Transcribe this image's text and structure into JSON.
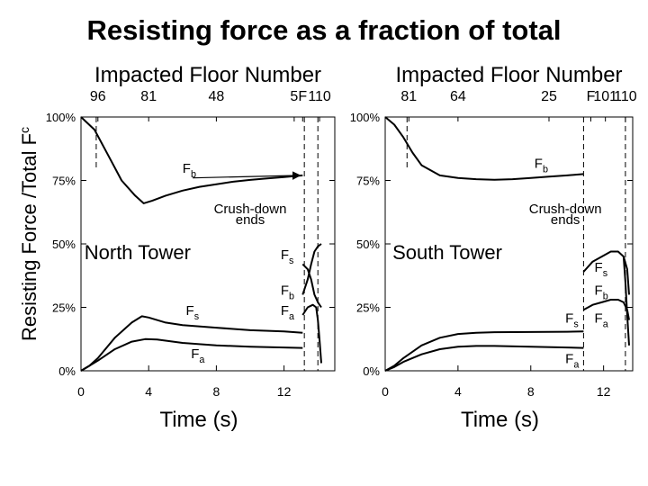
{
  "title": "Resisting force as a fraction of total",
  "ylabel_main": "Resisting Force /Total F",
  "ylabel_sub": "c",
  "chart_data": [
    {
      "type": "line",
      "panel_label": "North Tower",
      "top_axis_label": "Impacted Floor Number",
      "top_ticks": [
        {
          "label": "96",
          "t": 1.0
        },
        {
          "label": "81",
          "t": 4.0
        },
        {
          "label": "48",
          "t": 8.0
        },
        {
          "label": "5",
          "t": 12.6
        },
        {
          "label": "F",
          "t": 13.1
        },
        {
          "label": "110",
          "t": 14.1
        }
      ],
      "xlabel": "Time (s)",
      "xlim": [
        0,
        15
      ],
      "ylim": [
        0,
        100
      ],
      "x_ticks": [
        "0",
        "4",
        "8",
        "12"
      ],
      "x_tick_values": [
        0,
        4,
        8,
        12
      ],
      "y_ticks": [
        "0%",
        "25%",
        "50%",
        "75%",
        "100%"
      ],
      "y_tick_values": [
        0,
        25,
        50,
        75,
        100
      ],
      "dashed_x": [
        0.9,
        13.2,
        14.0
      ],
      "series": [
        {
          "name": "F",
          "sub": "b",
          "x": [
            0,
            0.8,
            1.6,
            2.4,
            3.2,
            3.7,
            4.2,
            5,
            6,
            7,
            8,
            9,
            10,
            11,
            12,
            13.1
          ],
          "y": [
            100,
            95,
            85,
            75,
            69,
            66,
            67,
            69,
            71,
            72.5,
            73.5,
            74.5,
            75.2,
            75.8,
            76.3,
            77
          ]
        },
        {
          "name": "F",
          "sub": "s",
          "x": [
            0,
            0.5,
            1,
            2,
            3,
            3.6,
            4,
            5,
            6,
            8,
            10,
            12,
            13.1
          ],
          "y": [
            0,
            2,
            5,
            13,
            19,
            21.5,
            21,
            19,
            18,
            17,
            16,
            15.5,
            15
          ]
        },
        {
          "name": "F",
          "sub": "a",
          "x": [
            0,
            0.5,
            1,
            2,
            3,
            3.8,
            4.5,
            6,
            8,
            10,
            12,
            13.1
          ],
          "y": [
            0,
            2,
            4,
            8.5,
            11.5,
            12.5,
            12.3,
            11,
            10,
            9.5,
            9.2,
            9
          ]
        },
        {
          "name": "F",
          "sub": "s",
          "x": [
            13.1,
            13.4,
            13.6,
            13.8,
            14,
            14.2
          ],
          "y": [
            42,
            40,
            36,
            30,
            27,
            25
          ]
        },
        {
          "name": "F",
          "sub": "b",
          "x": [
            13.1,
            13.4,
            13.6,
            13.8,
            14,
            14.2
          ],
          "y": [
            30,
            36,
            42,
            47,
            49,
            50
          ]
        },
        {
          "name": "F",
          "sub": "a",
          "x": [
            13.1,
            13.4,
            13.7,
            13.9,
            14,
            14.1,
            14.2
          ],
          "y": [
            22,
            25,
            26,
            25,
            20,
            12,
            3
          ]
        }
      ],
      "labels": [
        {
          "text": "F",
          "sub": "b",
          "x": 6.0,
          "y": 78
        },
        {
          "text": "F",
          "sub": "s",
          "x": 6.2,
          "y": 22
        },
        {
          "text": "F",
          "sub": "a",
          "x": 6.5,
          "y": 5
        },
        {
          "text": "F",
          "sub": "s",
          "x": 11.8,
          "y": 44
        },
        {
          "text": "F",
          "sub": "b",
          "x": 11.8,
          "y": 30
        },
        {
          "text": "F",
          "sub": "a",
          "x": 11.8,
          "y": 22
        }
      ],
      "annotation": {
        "line1": "Crush-down",
        "line2": "ends",
        "x": 10.0,
        "y": 62,
        "arrow_to_x": 13.1,
        "arrow_to_y": 77
      }
    },
    {
      "type": "line",
      "panel_label": "South Tower",
      "top_axis_label": "Impacted Floor Number",
      "top_ticks": [
        {
          "label": "81",
          "t": 1.3
        },
        {
          "label": "64",
          "t": 4.0
        },
        {
          "label": "25",
          "t": 9.0
        },
        {
          "label": "F",
          "t": 11.3
        },
        {
          "label": "101",
          "t": 12.1
        },
        {
          "label": "110",
          "t": 13.2
        }
      ],
      "xlabel": "Time (s)",
      "xlim": [
        0,
        13.6
      ],
      "ylim": [
        0,
        100
      ],
      "x_ticks": [
        "0",
        "4",
        "8",
        "12"
      ],
      "x_tick_values": [
        0,
        4,
        8,
        12
      ],
      "y_ticks": [
        "0%",
        "25%",
        "50%",
        "75%",
        "100%"
      ],
      "y_tick_values": [
        0,
        25,
        50,
        75,
        100
      ],
      "dashed_x": [
        1.2,
        10.9,
        13.2
      ],
      "series": [
        {
          "name": "F",
          "sub": "b",
          "x": [
            0,
            0.5,
            1,
            1.5,
            2,
            3,
            4,
            5,
            6,
            7,
            8,
            9,
            10,
            10.9
          ],
          "y": [
            100,
            97,
            92,
            86,
            81,
            77,
            76,
            75.5,
            75.3,
            75.5,
            76,
            76.5,
            77,
            77.5
          ]
        },
        {
          "name": "F",
          "sub": "s",
          "x": [
            0,
            0.5,
            1,
            2,
            3,
            4,
            5,
            6,
            8,
            10,
            10.9
          ],
          "y": [
            0,
            2,
            5,
            10,
            13,
            14.5,
            15,
            15.2,
            15.3,
            15.4,
            15.5
          ]
        },
        {
          "name": "F",
          "sub": "a",
          "x": [
            0,
            0.5,
            1,
            2,
            3,
            4,
            5,
            6,
            8,
            10,
            10.9
          ],
          "y": [
            0,
            1.5,
            3.5,
            6.5,
            8.5,
            9.5,
            9.8,
            9.8,
            9.5,
            9.2,
            9
          ]
        },
        {
          "name": "F",
          "sub": "s",
          "x": [
            10.9,
            11.4,
            11.9,
            12.4,
            12.8,
            13.1,
            13.3,
            13.4
          ],
          "y": [
            39,
            43,
            45,
            47,
            47,
            45,
            40,
            30
          ]
        },
        {
          "name": "F",
          "sub": "b",
          "x": [
            10.9,
            11.4,
            11.9,
            12.4,
            12.8,
            13.1,
            13.3,
            13.4
          ],
          "y": [
            24,
            26,
            27,
            28,
            28,
            27,
            24,
            20
          ]
        },
        {
          "name": "F",
          "sub": "a",
          "x": [
            13.1,
            13.2,
            13.3,
            13.4
          ],
          "y": [
            45,
            35,
            22,
            10
          ]
        }
      ],
      "labels": [
        {
          "text": "F",
          "sub": "b",
          "x": 8.2,
          "y": 80
        },
        {
          "text": "F",
          "sub": "s",
          "x": 9.9,
          "y": 19
        },
        {
          "text": "F",
          "sub": "a",
          "x": 9.9,
          "y": 3
        },
        {
          "text": "F",
          "sub": "s",
          "x": 11.5,
          "y": 39
        },
        {
          "text": "F",
          "sub": "b",
          "x": 11.5,
          "y": 30
        },
        {
          "text": "F",
          "sub": "a",
          "x": 11.5,
          "y": 19
        }
      ],
      "annotation": {
        "line1": "Crush-down",
        "line2": "ends",
        "x": 9.9,
        "y": 62
      }
    }
  ]
}
